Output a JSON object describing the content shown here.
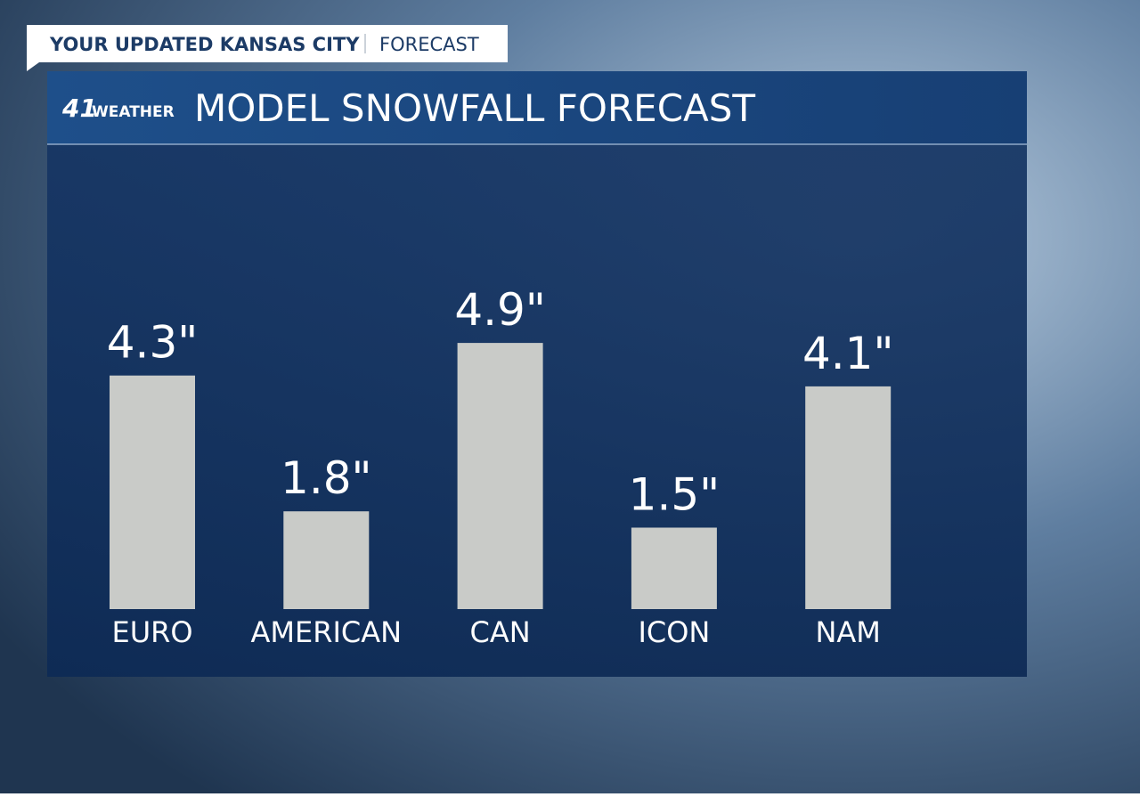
{
  "header": {
    "title": "YOUR UPDATED KANSAS CITY",
    "section": "FORECAST"
  },
  "branding": {
    "number": "41",
    "word": "WEATHER"
  },
  "chart_data": {
    "type": "bar",
    "title": "MODEL SNOWFALL FORECAST",
    "categories": [
      "EURO",
      "AMERICAN",
      "CAN",
      "ICON",
      "NAM"
    ],
    "values": [
      4.3,
      1.8,
      4.9,
      1.5,
      4.1
    ],
    "value_labels": [
      "4.3\"",
      "1.8\"",
      "4.9\"",
      "1.5\"",
      "4.1\""
    ],
    "color": "#c9cbc8"
  }
}
